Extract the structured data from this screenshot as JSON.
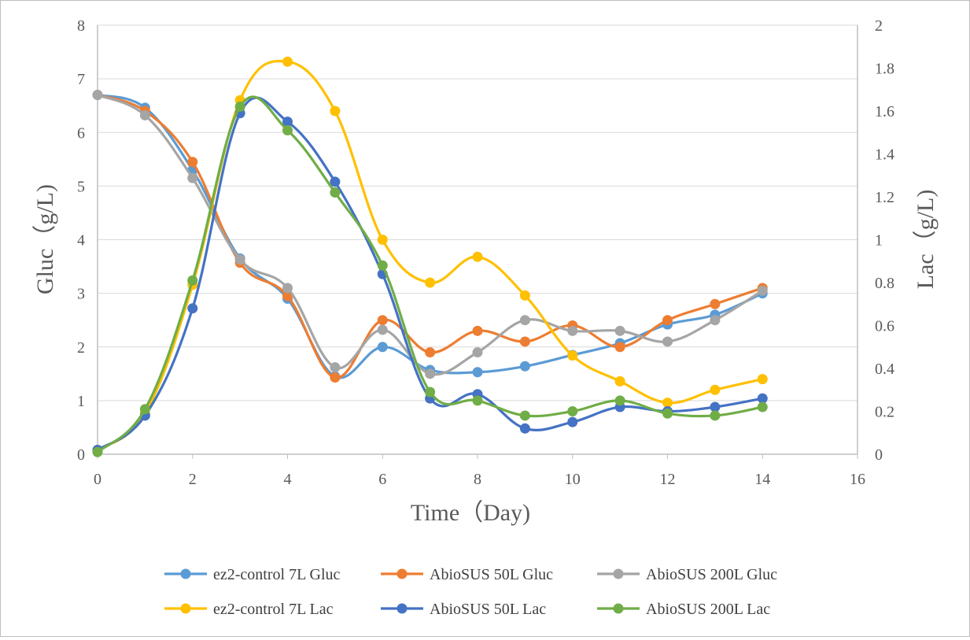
{
  "chart_data": {
    "type": "line",
    "xlabel": "Time（Day)",
    "ylabel_left": "Gluc（g/L)",
    "ylabel_right": "Lac（g/L)",
    "xlim": [
      0,
      16
    ],
    "ylim_left": [
      0,
      8
    ],
    "ylim_right": [
      0,
      2
    ],
    "x_ticks": [
      "0",
      "2",
      "4",
      "6",
      "8",
      "10",
      "12",
      "14",
      "16"
    ],
    "y_left_ticks": [
      "0",
      "1",
      "2",
      "3",
      "4",
      "5",
      "6",
      "7",
      "8"
    ],
    "y_right_ticks": [
      "0",
      "0.2",
      "0.4",
      "0.6",
      "0.8",
      "1",
      "1.2",
      "1.4",
      "1.6",
      "1.8",
      "2"
    ],
    "grid": true,
    "legend_position": "bottom",
    "series": [
      {
        "name": "ez2-control 7L Gluc",
        "axis": "left",
        "color": "#5B9BD5",
        "x": [
          0,
          1,
          2,
          3,
          4,
          5,
          6,
          7,
          8,
          9,
          10,
          11,
          12,
          13,
          14
        ],
        "values": [
          6.7,
          6.46,
          5.3,
          3.65,
          2.9,
          1.45,
          2.0,
          1.57,
          1.53,
          1.64,
          1.85,
          2.07,
          2.42,
          2.6,
          3.0
        ]
      },
      {
        "name": "AbioSUS 50L Gluc",
        "axis": "left",
        "color": "#ED7D31",
        "x": [
          0,
          1,
          2,
          3,
          4,
          5,
          6,
          7,
          8,
          9,
          10,
          11,
          12,
          13,
          14
        ],
        "values": [
          6.7,
          6.4,
          5.45,
          3.57,
          2.95,
          1.43,
          2.5,
          1.9,
          2.3,
          2.1,
          2.4,
          2.0,
          2.5,
          2.8,
          3.1
        ]
      },
      {
        "name": "AbioSUS 200L Gluc",
        "axis": "left",
        "color": "#A5A5A5",
        "x": [
          0,
          1,
          2,
          3,
          4,
          5,
          6,
          7,
          8,
          9,
          10,
          11,
          12,
          13,
          14
        ],
        "values": [
          6.7,
          6.32,
          5.15,
          3.63,
          3.1,
          1.62,
          2.32,
          1.5,
          1.9,
          2.5,
          2.3,
          2.3,
          2.1,
          2.5,
          3.05
        ]
      },
      {
        "name": "ez2-control 7L Lac",
        "axis": "right",
        "color": "#FFC000",
        "x": [
          0,
          1,
          2,
          3,
          4,
          5,
          6,
          7,
          8,
          9,
          10,
          11,
          12,
          13,
          14
        ],
        "values": [
          0.02,
          0.19,
          0.79,
          1.65,
          1.83,
          1.6,
          1.0,
          0.8,
          0.92,
          0.74,
          0.46,
          0.34,
          0.24,
          0.3,
          0.35
        ]
      },
      {
        "name": "AbioSUS 50L Lac",
        "axis": "right",
        "color": "#4472C4",
        "x": [
          0,
          1,
          2,
          3,
          4,
          5,
          6,
          7,
          8,
          9,
          10,
          11,
          12,
          13,
          14
        ],
        "values": [
          0.02,
          0.18,
          0.68,
          1.59,
          1.55,
          1.27,
          0.84,
          0.26,
          0.28,
          0.12,
          0.15,
          0.22,
          0.2,
          0.22,
          0.26
        ]
      },
      {
        "name": "AbioSUS 200L Lac",
        "axis": "right",
        "color": "#70AD47",
        "x": [
          0,
          1,
          2,
          3,
          4,
          5,
          6,
          7,
          8,
          9,
          10,
          11,
          12,
          13,
          14
        ],
        "values": [
          0.01,
          0.21,
          0.81,
          1.62,
          1.51,
          1.22,
          0.88,
          0.29,
          0.25,
          0.18,
          0.2,
          0.25,
          0.19,
          0.18,
          0.22
        ]
      }
    ]
  }
}
